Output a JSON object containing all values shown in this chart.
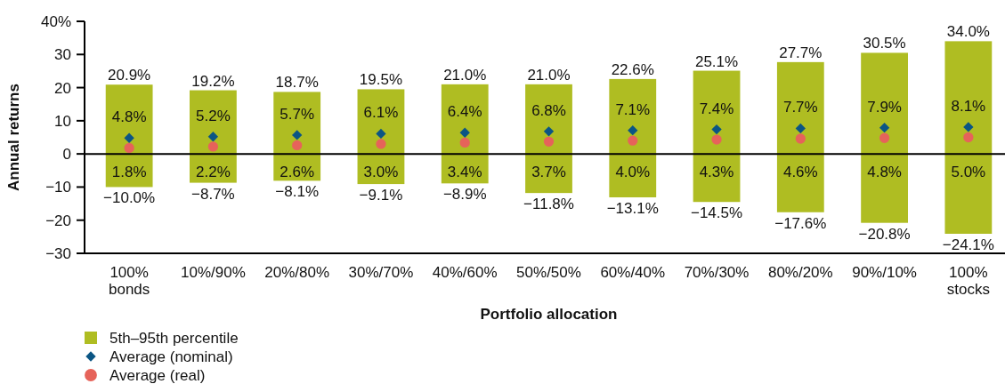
{
  "chart_data": {
    "type": "bar",
    "xlabel": "Portfolio allocation",
    "ylabel": "Annual returns",
    "categories": [
      "100% bonds",
      "10%/90%",
      "20%/80%",
      "30%/70%",
      "40%/60%",
      "50%/50%",
      "60%/40%",
      "70%/30%",
      "80%/20%",
      "90%/10%",
      "100% stocks"
    ],
    "ylim": [
      -30,
      40
    ],
    "yticks": [
      {
        "value": 40,
        "label": "40%"
      },
      30,
      20,
      10,
      0,
      {
        "value": -10,
        "label": "−10"
      },
      {
        "value": -20,
        "label": "−20"
      },
      {
        "value": -30,
        "label": "−30"
      }
    ],
    "legend": "bottom left",
    "series": [
      {
        "name": "5th–95th percentile",
        "color": "#afbd22",
        "base": [
          -10.0,
          -8.7,
          -8.1,
          -9.1,
          -8.9,
          -11.8,
          -13.1,
          -14.5,
          -17.6,
          -20.8,
          -24.1
        ],
        "values": [
          30.9,
          27.9,
          26.8,
          28.6,
          29.9,
          32.8,
          35.7,
          39.6,
          45.3,
          51.3,
          58.1
        ]
      },
      {
        "name": "Average (nominal)",
        "type": "scatter",
        "marker": "diamond",
        "color": "#0b5584",
        "values": [
          4.8,
          5.2,
          5.7,
          6.1,
          6.4,
          6.8,
          7.1,
          7.4,
          7.7,
          7.9,
          8.1
        ],
        "value_labels": [
          "4.8%",
          "5.2%",
          "5.7%",
          "6.1%",
          "6.4%",
          "6.8%",
          "7.1%",
          "7.4%",
          "7.7%",
          "7.9%",
          "8.1%"
        ]
      },
      {
        "name": "Average (real)",
        "type": "scatter",
        "marker": "circle",
        "color": "#e6635a",
        "values": [
          1.8,
          2.2,
          2.6,
          3.0,
          3.4,
          3.7,
          4.0,
          4.3,
          4.6,
          4.8,
          5.0
        ],
        "value_labels": [
          "1.8%",
          "2.2%",
          "2.6%",
          "3.0%",
          "3.4%",
          "3.7%",
          "4.0%",
          "4.3%",
          "4.6%",
          "4.8%",
          "5.0%"
        ]
      }
    ],
    "ref_lines": [
      {
        "axis": "y",
        "value": 0,
        "color": "#000000"
      }
    ],
    "annotations": [
      {
        "text": "20.9%",
        "x": "100% bonds",
        "y": 20.9
      },
      {
        "text": "−10.0%",
        "x": "100% bonds",
        "y": -10.0
      },
      {
        "text": "19.2%",
        "x": "10%/90%",
        "y": 19.2
      },
      {
        "text": "−8.7%",
        "x": "10%/90%",
        "y": -8.7
      },
      {
        "text": "18.7%",
        "x": "20%/80%",
        "y": 18.7
      },
      {
        "text": "−8.1%",
        "x": "20%/80%",
        "y": -8.1
      },
      {
        "text": "19.5%",
        "x": "30%/70%",
        "y": 19.5
      },
      {
        "text": "−9.1%",
        "x": "30%/70%",
        "y": -9.1
      },
      {
        "text": "21.0%",
        "x": "40%/60%",
        "y": 21.0
      },
      {
        "text": "−8.9%",
        "x": "40%/60%",
        "y": -8.9
      },
      {
        "text": "21.0%",
        "x": "50%/50%",
        "y": 21.0
      },
      {
        "text": "−11.8%",
        "x": "50%/50%",
        "y": -11.8
      },
      {
        "text": "22.6%",
        "x": "60%/40%",
        "y": 22.6
      },
      {
        "text": "−13.1%",
        "x": "60%/40%",
        "y": -13.1
      },
      {
        "text": "25.1%",
        "x": "70%/30%",
        "y": 25.1
      },
      {
        "text": "−14.5%",
        "x": "70%/30%",
        "y": -14.5
      },
      {
        "text": "27.7%",
        "x": "80%/20%",
        "y": 27.7
      },
      {
        "text": "−17.6%",
        "x": "80%/20%",
        "y": -17.6
      },
      {
        "text": "30.5%",
        "x": "90%/10%",
        "y": 30.5
      },
      {
        "text": "−20.8%",
        "x": "90%/10%",
        "y": -20.8
      },
      {
        "text": "34.0%",
        "x": "100% stocks",
        "y": 34.0
      },
      {
        "text": "−24.1%",
        "x": "100% stocks",
        "y": -24.1
      }
    ]
  }
}
